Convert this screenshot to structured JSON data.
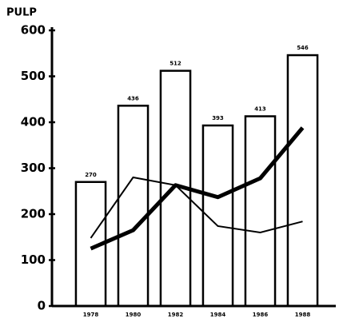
{
  "chart_data": {
    "type": "bar",
    "y_label": "PULP",
    "categories": [
      "1978",
      "1980",
      "1982",
      "1984",
      "1986",
      "1988"
    ],
    "values": [
      270,
      436,
      512,
      393,
      413,
      546
    ],
    "color": "#ffffff",
    "series": [
      {
        "type": "line",
        "color": "#000000",
        "values": [
          148,
          280,
          263,
          174,
          160,
          184
        ]
      },
      {
        "type": "line",
        "color": "#000000",
        "values": [
          125,
          165,
          263,
          237,
          278,
          388
        ]
      }
    ],
    "ylim": [
      0,
      600
    ],
    "yticks": [
      0,
      100,
      200,
      300,
      400,
      500,
      600
    ],
    "grid": false
  }
}
